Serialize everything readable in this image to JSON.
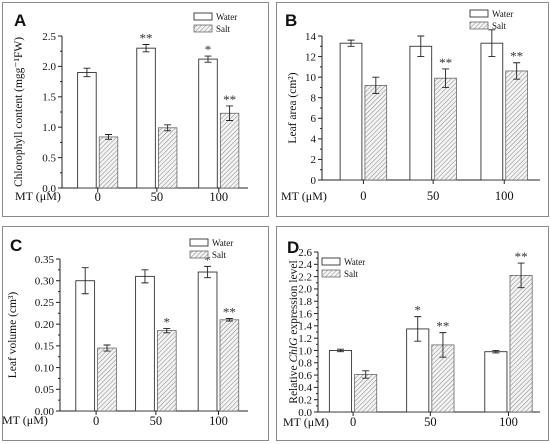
{
  "chart_data": [
    {
      "panel": "A",
      "type": "bar",
      "ylabel": "Chlorophyll content (mgg⁻¹FW)",
      "xlabel": "MT (μM)",
      "categories": [
        "0",
        "50",
        "100"
      ],
      "ylim": [
        0,
        2.5
      ],
      "yticks": [
        "0.0",
        "0.5",
        "1.0",
        "1.5",
        "2.0",
        "2.5"
      ],
      "legend_position": "top-right",
      "series": [
        {
          "name": "Water",
          "values": [
            1.9,
            2.3,
            2.12
          ],
          "errors": [
            0.07,
            0.06,
            0.05
          ],
          "sig": [
            "",
            "**",
            "*"
          ]
        },
        {
          "name": "Salt",
          "values": [
            0.84,
            0.99,
            1.23
          ],
          "errors": [
            0.04,
            0.05,
            0.12
          ],
          "sig": [
            "",
            "",
            "**"
          ]
        }
      ]
    },
    {
      "panel": "B",
      "type": "bar",
      "ylabel": "Leaf area (cm²)",
      "xlabel": "MT (μM)",
      "categories": [
        "0",
        "50",
        "100"
      ],
      "ylim": [
        0,
        14
      ],
      "yticks": [
        "0",
        "2",
        "4",
        "6",
        "8",
        "10",
        "12",
        "14"
      ],
      "legend_position": "top-right",
      "series": [
        {
          "name": "Water",
          "values": [
            13.3,
            13.0,
            13.3
          ],
          "errors": [
            0.3,
            1.0,
            1.3
          ],
          "sig": [
            "",
            "",
            ""
          ]
        },
        {
          "name": "Salt",
          "values": [
            9.2,
            9.9,
            10.6
          ],
          "errors": [
            0.8,
            0.9,
            0.8
          ],
          "sig": [
            "",
            "**",
            "**"
          ]
        }
      ]
    },
    {
      "panel": "C",
      "type": "bar",
      "ylabel": "Leaf volume (cm³)",
      "xlabel": "MT (μM)",
      "categories": [
        "0",
        "50",
        "100"
      ],
      "ylim": [
        0,
        0.35
      ],
      "yticks": [
        "0.00",
        "0.05",
        "0.10",
        "0.15",
        "0.20",
        "0.25",
        "0.30",
        "0.35"
      ],
      "legend_position": "top-right",
      "series": [
        {
          "name": "Water",
          "values": [
            0.3,
            0.31,
            0.32
          ],
          "errors": [
            0.03,
            0.015,
            0.013
          ],
          "sig": [
            "",
            "",
            "*"
          ]
        },
        {
          "name": "Salt",
          "values": [
            0.145,
            0.185,
            0.21
          ],
          "errors": [
            0.007,
            0.005,
            0.003
          ],
          "sig": [
            "",
            "*",
            "**"
          ]
        }
      ]
    },
    {
      "panel": "D",
      "type": "bar",
      "ylabel_prefix": "Relative ",
      "ylabel_gene": "ChlG",
      "ylabel_suffix": " expression level",
      "xlabel": "MT (μM)",
      "categories": [
        "0",
        "50",
        "100"
      ],
      "ylim": [
        0,
        2.6
      ],
      "yticks": [
        "0.0",
        "0.2",
        "0.4",
        "0.6",
        "0.8",
        "1.0",
        "1.2",
        "1.4",
        "1.6",
        "1.8",
        "2.0",
        "2.2",
        "2.4",
        "2.6"
      ],
      "legend_position": "top-left",
      "series": [
        {
          "name": "Water",
          "values": [
            1.0,
            1.35,
            0.98
          ],
          "errors": [
            0.02,
            0.2,
            0.02
          ],
          "sig": [
            "",
            "*",
            ""
          ]
        },
        {
          "name": "Salt",
          "values": [
            0.61,
            1.09,
            2.22
          ],
          "errors": [
            0.06,
            0.2,
            0.2
          ],
          "sig": [
            "",
            "**",
            "**"
          ]
        }
      ]
    }
  ]
}
